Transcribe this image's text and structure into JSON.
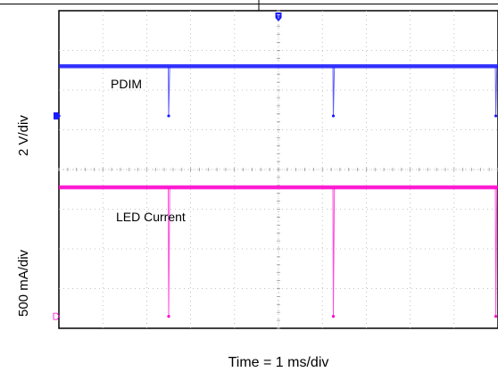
{
  "chart_data": {
    "type": "line",
    "xlabel": "Time = 1 ms/div",
    "ylabel_upper": "2 V/div",
    "ylabel_lower": "500 mA/div",
    "x_divisions": 10,
    "y_divisions": 8,
    "x_start_div": 0,
    "x_end_div": 10,
    "grid": true,
    "series": [
      {
        "name": "PDIM",
        "color": "#1a1aff",
        "high_div": 6.6,
        "low_div": 5.35,
        "drop_times_div": [
          2.5,
          6.25,
          9.95
        ]
      },
      {
        "name": "LED Current",
        "color": "#ff00cc",
        "high_div": 3.55,
        "low_div": 0.3,
        "drop_times_div": [
          2.5,
          6.25,
          9.95
        ]
      }
    ],
    "markers": [
      {
        "name": "trigger-marker",
        "label": "T",
        "color": "#1a1aff"
      },
      {
        "name": "ch1-ground-marker",
        "label": "1",
        "color": "#1a1aff"
      },
      {
        "name": "ch2-ground-marker",
        "label": "2",
        "color": "#ff00cc"
      }
    ]
  }
}
